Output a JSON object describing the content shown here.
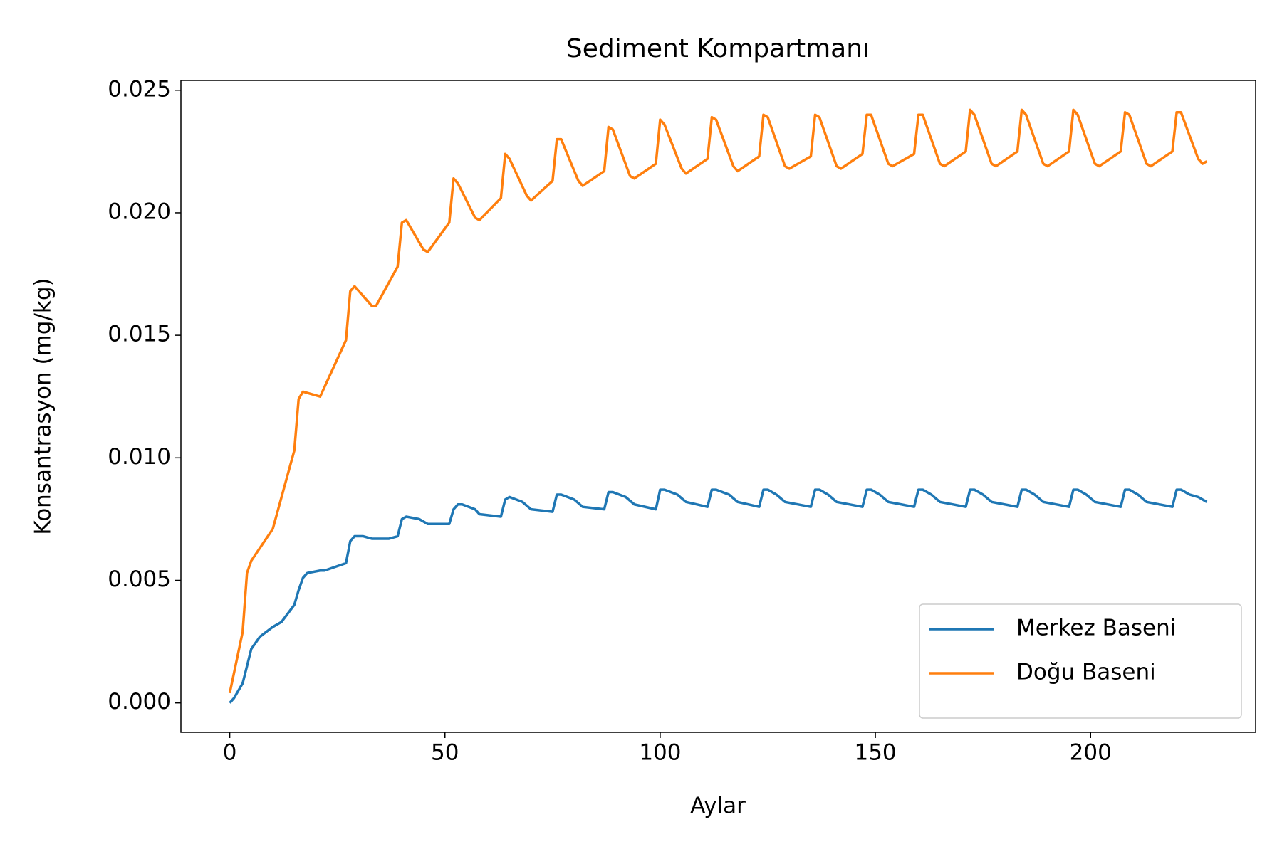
{
  "chart_data": {
    "type": "line",
    "title": "Sediment Kompartmanı",
    "xlabel": "Aylar",
    "ylabel": "Konsantrasyon (mg/kg)",
    "xlim": [
      -11.35,
      238.35
    ],
    "xticks": [
      0,
      50,
      100,
      150,
      200
    ],
    "ylim": [
      -0.0012,
      0.0254
    ],
    "yticks": [
      {
        "value": 0,
        "label": "0.000"
      },
      0.005,
      {
        "value": 0.01,
        "label": "0.010"
      },
      0.015,
      {
        "value": 0.02,
        "label": "0.020"
      },
      0.025
    ],
    "legend": "lower right",
    "series": [
      {
        "name": "Merkez Baseni",
        "color": "#1f77b4",
        "x": [
          0,
          1,
          3,
          4,
          5,
          7,
          10,
          12,
          15,
          16,
          17,
          18,
          21,
          22,
          27,
          28,
          29,
          31,
          33,
          37,
          39,
          40,
          41,
          44,
          46,
          51,
          52,
          53,
          54,
          57,
          58,
          63,
          64,
          65,
          68,
          70,
          75,
          76,
          77,
          80,
          82,
          87,
          88,
          89,
          92,
          94,
          99,
          100,
          101,
          104,
          106,
          111,
          112,
          113,
          116,
          118,
          123,
          124,
          125,
          127,
          129,
          135,
          136,
          137,
          139,
          141,
          147,
          148,
          149,
          151,
          153,
          159,
          160,
          161,
          163,
          165,
          171,
          172,
          173,
          175,
          177,
          183,
          184,
          185,
          187,
          189,
          195,
          196,
          197,
          199,
          201,
          207,
          208,
          209,
          211,
          213,
          219,
          220,
          221,
          223,
          225,
          227
        ],
        "values": [
          0.0,
          0.0002,
          0.0008,
          0.0015,
          0.0022,
          0.0027,
          0.0031,
          0.0033,
          0.004,
          0.0046,
          0.0051,
          0.0053,
          0.0054,
          0.0054,
          0.0057,
          0.0066,
          0.0068,
          0.0068,
          0.0067,
          0.0067,
          0.0068,
          0.0075,
          0.0076,
          0.0075,
          0.0073,
          0.0073,
          0.0079,
          0.0081,
          0.0081,
          0.0079,
          0.0077,
          0.0076,
          0.0083,
          0.0084,
          0.0082,
          0.0079,
          0.0078,
          0.0085,
          0.0085,
          0.0083,
          0.008,
          0.0079,
          0.0086,
          0.0086,
          0.0084,
          0.0081,
          0.0079,
          0.0087,
          0.0087,
          0.0085,
          0.0082,
          0.008,
          0.0087,
          0.0087,
          0.0085,
          0.0082,
          0.008,
          0.0087,
          0.0087,
          0.0085,
          0.0082,
          0.008,
          0.0087,
          0.0087,
          0.0085,
          0.0082,
          0.008,
          0.0087,
          0.0087,
          0.0085,
          0.0082,
          0.008,
          0.0087,
          0.0087,
          0.0085,
          0.0082,
          0.008,
          0.0087,
          0.0087,
          0.0085,
          0.0082,
          0.008,
          0.0087,
          0.0087,
          0.0085,
          0.0082,
          0.008,
          0.0087,
          0.0087,
          0.0085,
          0.0082,
          0.008,
          0.0087,
          0.0087,
          0.0085,
          0.0082,
          0.008,
          0.0087,
          0.0087,
          0.0085,
          0.0084,
          0.0082
        ]
      },
      {
        "name": "Doğu Baseni",
        "color": "#ff7f0e",
        "x": [
          0,
          3,
          4,
          5,
          10,
          15,
          16,
          17,
          21,
          27,
          28,
          29,
          33,
          34,
          39,
          40,
          41,
          45,
          46,
          51,
          52,
          53,
          57,
          58,
          63,
          64,
          65,
          69,
          70,
          75,
          76,
          77,
          81,
          82,
          87,
          88,
          89,
          93,
          94,
          99,
          100,
          101,
          105,
          106,
          111,
          112,
          113,
          117,
          118,
          123,
          124,
          125,
          129,
          130,
          135,
          136,
          137,
          141,
          142,
          147,
          148,
          149,
          153,
          154,
          159,
          160,
          161,
          165,
          166,
          171,
          172,
          173,
          177,
          178,
          183,
          184,
          185,
          189,
          190,
          195,
          196,
          197,
          201,
          202,
          207,
          208,
          209,
          213,
          214,
          219,
          220,
          221,
          225,
          226,
          227
        ],
        "values": [
          0.0004,
          0.0029,
          0.0053,
          0.0058,
          0.0071,
          0.0103,
          0.0124,
          0.0127,
          0.0125,
          0.0148,
          0.0168,
          0.017,
          0.0162,
          0.0162,
          0.0178,
          0.0196,
          0.0197,
          0.0185,
          0.0184,
          0.0196,
          0.0214,
          0.0212,
          0.0198,
          0.0197,
          0.0206,
          0.0224,
          0.0222,
          0.0207,
          0.0205,
          0.0213,
          0.023,
          0.023,
          0.0213,
          0.0211,
          0.0217,
          0.0235,
          0.0234,
          0.0215,
          0.0214,
          0.022,
          0.0238,
          0.0236,
          0.0218,
          0.0216,
          0.0222,
          0.0239,
          0.0238,
          0.0219,
          0.0217,
          0.0223,
          0.024,
          0.0239,
          0.0219,
          0.0218,
          0.0223,
          0.024,
          0.0239,
          0.0219,
          0.0218,
          0.0224,
          0.024,
          0.024,
          0.022,
          0.0219,
          0.0224,
          0.024,
          0.024,
          0.022,
          0.0219,
          0.0225,
          0.0242,
          0.024,
          0.022,
          0.0219,
          0.0225,
          0.0242,
          0.024,
          0.022,
          0.0219,
          0.0225,
          0.0242,
          0.024,
          0.022,
          0.0219,
          0.0225,
          0.0241,
          0.024,
          0.022,
          0.0219,
          0.0225,
          0.0241,
          0.0241,
          0.0222,
          0.022,
          0.0221
        ]
      }
    ]
  }
}
